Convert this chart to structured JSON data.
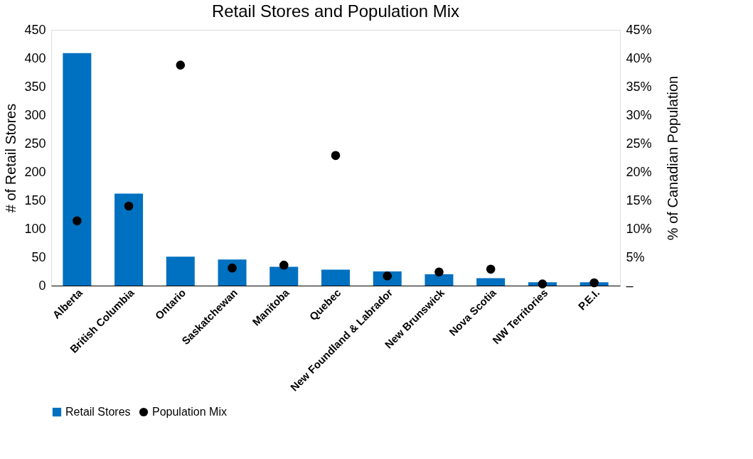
{
  "chart_data": {
    "type": "bar",
    "title": "Retail Stores and Population Mix",
    "categories": [
      "Alberta",
      "British Columbia",
      "Ontario",
      "Saskatchewan",
      "Manitoba",
      "Quebec",
      "New Foundland & Labrador",
      "New Brunswick",
      "Nova Scotia",
      "NW Territories",
      "P.E.I."
    ],
    "series": [
      {
        "name": "Retail Stores",
        "color": "#0070c0",
        "values": [
          409,
          162,
          51,
          46,
          33,
          28,
          25,
          20,
          13,
          6,
          6
        ]
      },
      {
        "name": "Population Mix",
        "type": "scatter",
        "axis": "y2",
        "color": "#000000",
        "marker": "circle",
        "values": [
          11.4,
          14.0,
          38.8,
          3.1,
          3.6,
          22.9,
          1.7,
          2.4,
          2.9,
          0.3,
          0.5
        ]
      }
    ],
    "ylabel": "# of Retail Stores",
    "y2label": "% of Canadian Population",
    "ylim": [
      0,
      450
    ],
    "yticks": [
      0,
      50,
      100,
      150,
      200,
      250,
      300,
      350,
      400,
      450
    ],
    "y2lim": [
      0,
      45
    ],
    "y2ticks": [
      {
        "value": 0,
        "label": "–"
      },
      {
        "value": 5,
        "label": "5%"
      },
      {
        "value": 10,
        "label": "10%"
      },
      {
        "value": 15,
        "label": "15%"
      },
      {
        "value": 20,
        "label": "20%"
      },
      {
        "value": 25,
        "label": "25%"
      },
      {
        "value": 30,
        "label": "30%"
      },
      {
        "value": 35,
        "label": "35%"
      },
      {
        "value": 40,
        "label": "40%"
      },
      {
        "value": 45,
        "label": "45%"
      }
    ],
    "grid": false,
    "legend": "bottom"
  }
}
